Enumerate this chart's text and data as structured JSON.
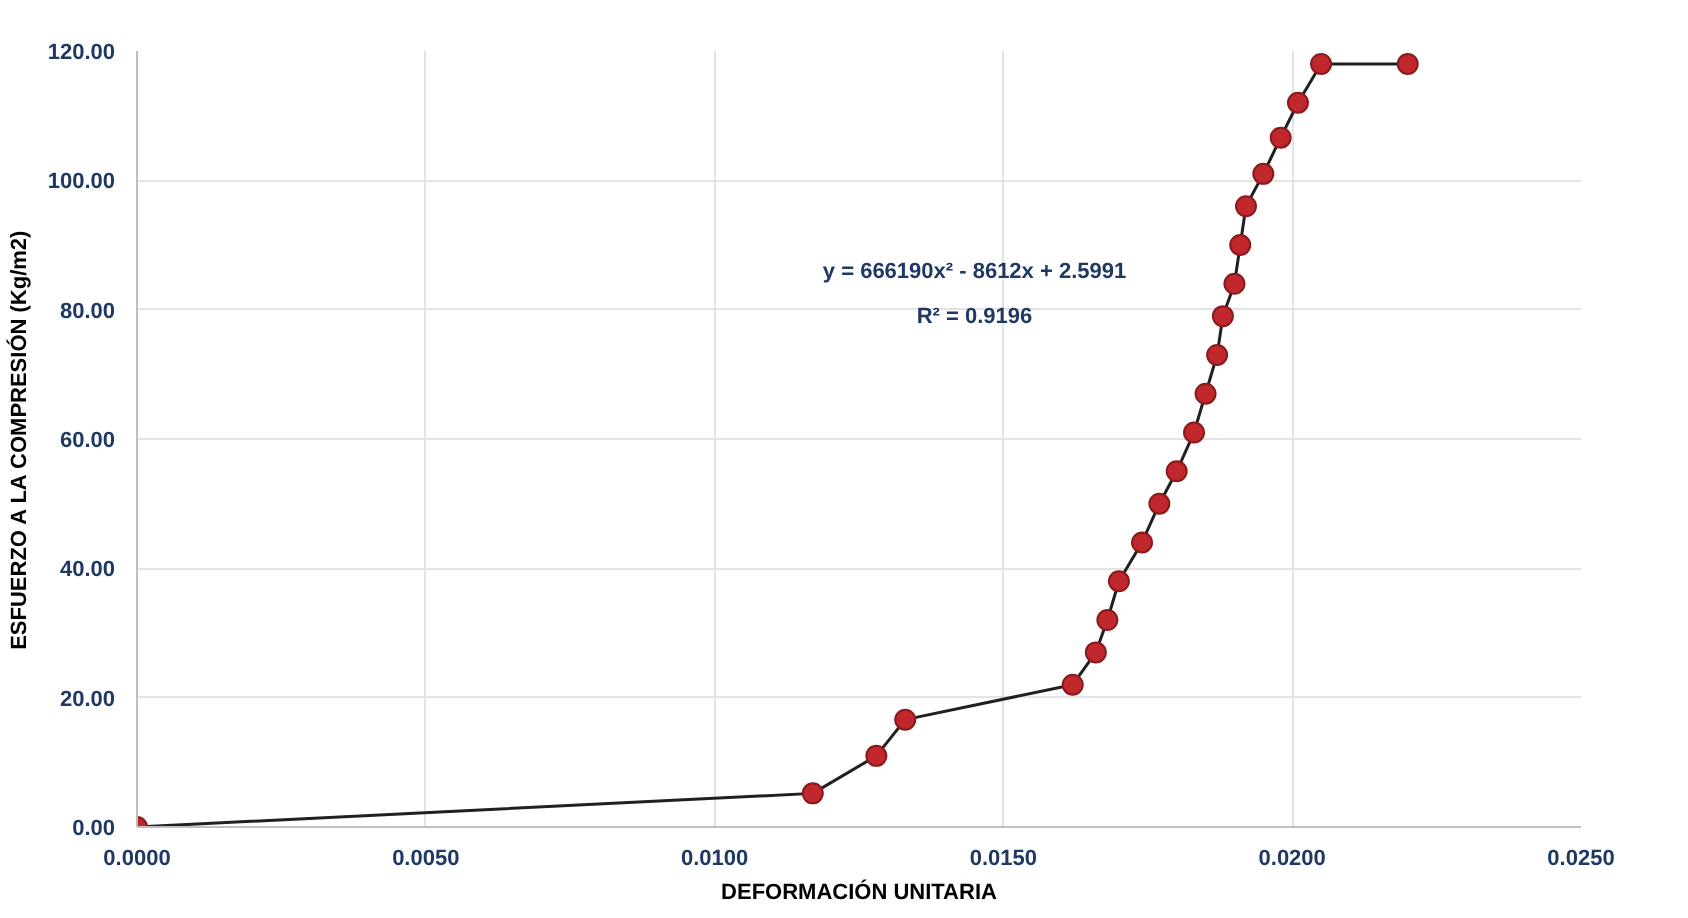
{
  "chart_data": {
    "type": "line",
    "xlabel": "DEFORMACIÓN UNITARIA",
    "ylabel": "ESFUERZO A LA COMPRESIÓN (Kg/m2)",
    "x": [
      0,
      0.0117,
      0.0128,
      0.0133,
      0.0162,
      0.0166,
      0.0168,
      0.017,
      0.0174,
      0.0177,
      0.018,
      0.0183,
      0.0185,
      0.0187,
      0.0188,
      0.019,
      0.0191,
      0.0192,
      0.0195,
      0.0198,
      0.0201,
      0.0205,
      0.022
    ],
    "series": [
      {
        "color": "#c0282d",
        "values": [
          0,
          5.2,
          11,
          16.6,
          22,
          27,
          32,
          38,
          44,
          50,
          55,
          61,
          67,
          73,
          79,
          84,
          90,
          96,
          101,
          106.6,
          112,
          118,
          118
        ]
      }
    ],
    "xlim": [
      0,
      0.025
    ],
    "xticks": [
      {
        "value": 0,
        "label": "0.0000"
      },
      {
        "value": 0.005,
        "label": "0.0050"
      },
      {
        "value": 0.01,
        "label": "0.0100"
      },
      {
        "value": 0.015,
        "label": "0.0150"
      },
      {
        "value": 0.02,
        "label": "0.0200"
      },
      {
        "value": 0.025,
        "label": "0.0250"
      }
    ],
    "ylim": [
      0,
      120
    ],
    "yticks": [
      {
        "value": 0,
        "label": "0.00"
      },
      {
        "value": 20,
        "label": "20.00"
      },
      {
        "value": 40,
        "label": "40.00"
      },
      {
        "value": 60,
        "label": "60.00"
      },
      {
        "value": 80,
        "label": "80.00"
      },
      {
        "value": 100,
        "label": "100.00"
      },
      {
        "value": 120,
        "label": "120.00"
      }
    ],
    "annotations": [
      "y = 666190x² - 8612x + 2.5991",
      "R² = 0.9196"
    ],
    "grid": true,
    "marker": "circle",
    "line_style": "solid"
  }
}
